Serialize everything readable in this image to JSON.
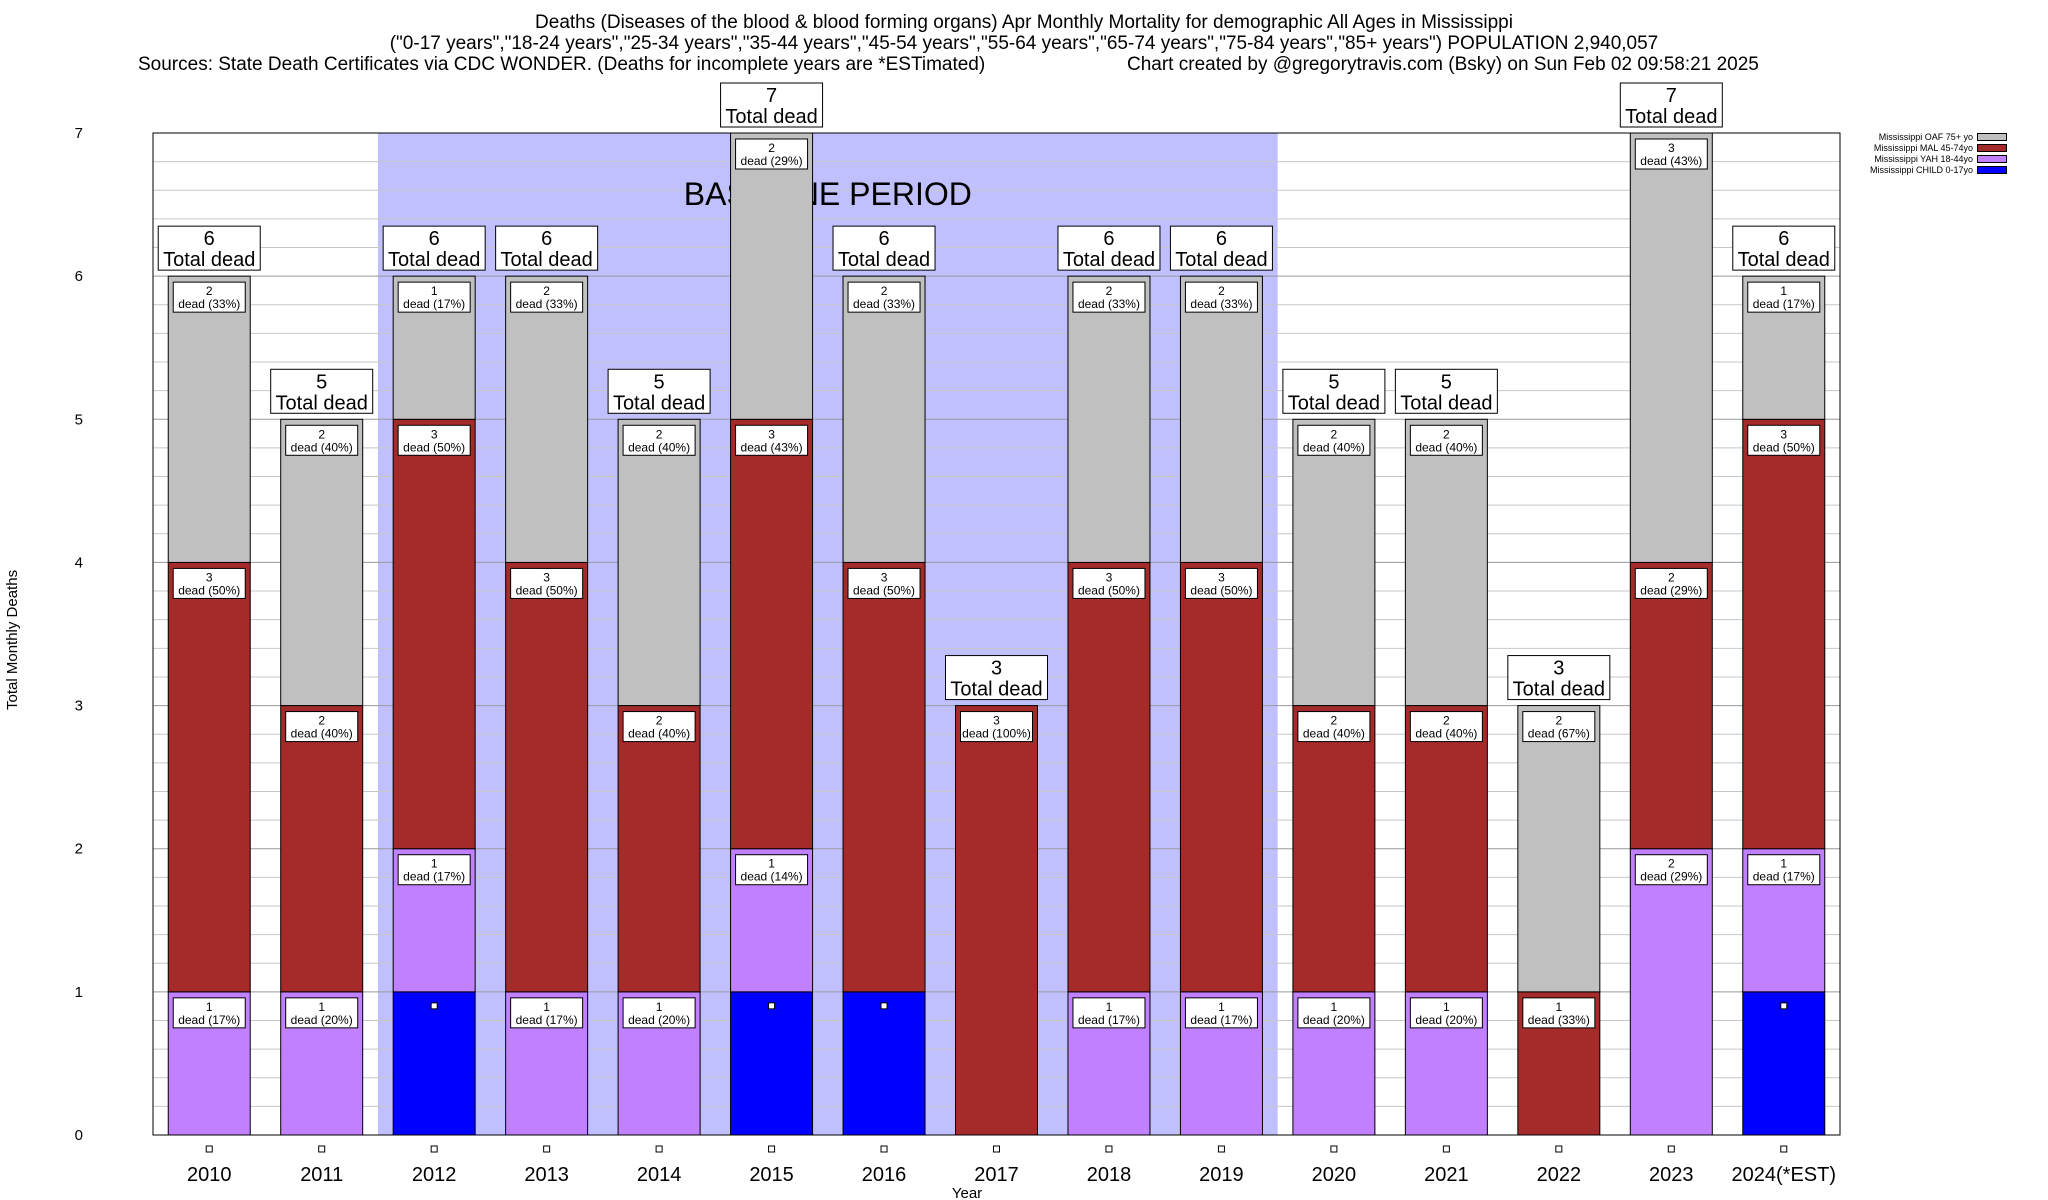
{
  "titles": {
    "line1": "Deaths (Diseases of the blood & blood forming organs) Apr Monthly Mortality for demographic All Ages in Mississippi",
    "line2": "(\"0-17 years\",\"18-24 years\",\"25-34 years\",\"35-44 years\",\"45-54 years\",\"55-64 years\",\"65-74 years\",\"75-84 years\",\"85+ years\") POPULATION 2,940,057",
    "source_left": "Sources: State Death Certificates via CDC WONDER. (Deaths for incomplete years are *ESTimated)",
    "source_right": "Chart created by @gregorytravis.com (Bsky) on Sun Feb 02 09:58:21 2025"
  },
  "chart_data": {
    "type": "bar",
    "stacked": true,
    "categories": [
      "2010",
      "2011",
      "2012",
      "2013",
      "2014",
      "2015",
      "2016",
      "2017",
      "2018",
      "2019",
      "2020",
      "2021",
      "2022",
      "2023",
      "2024(*EST)"
    ],
    "series": [
      {
        "name": "Mississippi CHILD 0-17yo",
        "color": "#0000ff",
        "values": [
          0,
          0,
          1,
          0,
          0,
          1,
          1,
          0,
          0,
          0,
          0,
          0,
          0,
          0,
          1
        ]
      },
      {
        "name": "Mississippi YAH 18-44yo",
        "color": "#c080ff",
        "values": [
          1,
          1,
          1,
          1,
          1,
          1,
          0,
          0,
          1,
          1,
          1,
          1,
          0,
          2,
          1
        ]
      },
      {
        "name": "Mississippi MAL 45-74yo",
        "color": "#a52a2a",
        "values": [
          3,
          2,
          3,
          3,
          2,
          3,
          3,
          3,
          3,
          3,
          2,
          2,
          1,
          2,
          3
        ]
      },
      {
        "name": "Mississippi OAF 75+ yo",
        "color": "#c0c0c0",
        "values": [
          2,
          2,
          1,
          2,
          2,
          2,
          2,
          0,
          2,
          2,
          2,
          2,
          2,
          3,
          1
        ]
      }
    ],
    "segment_labels": [
      [
        null,
        "1\ndead (17%)",
        "3\ndead (50%)",
        "2\ndead (33%)"
      ],
      [
        null,
        "1\ndead (20%)",
        "2\ndead (40%)",
        "2\ndead (40%)"
      ],
      [
        null,
        "1\ndead (17%)",
        "3\ndead (50%)",
        "1\ndead (17%)"
      ],
      [
        null,
        "1\ndead (17%)",
        "3\ndead (50%)",
        "2\ndead (33%)"
      ],
      [
        null,
        "1\ndead (20%)",
        "2\ndead (40%)",
        "2\ndead (40%)"
      ],
      [
        null,
        "1\ndead (14%)",
        "3\ndead (43%)",
        "2\ndead (29%)"
      ],
      [
        null,
        null,
        "3\ndead (50%)",
        "2\ndead (33%)"
      ],
      [
        null,
        null,
        "3\ndead (100%)",
        null
      ],
      [
        null,
        "1\ndead (17%)",
        "3\ndead (50%)",
        "2\ndead (33%)"
      ],
      [
        null,
        "1\ndead (17%)",
        "3\ndead (50%)",
        "2\ndead (33%)"
      ],
      [
        null,
        "1\ndead (20%)",
        "2\ndead (40%)",
        "2\ndead (40%)"
      ],
      [
        null,
        "1\ndead (20%)",
        "2\ndead (40%)",
        "2\ndead (40%)"
      ],
      [
        null,
        null,
        "1\ndead (33%)",
        "2\ndead (67%)"
      ],
      [
        null,
        "2\ndead (29%)",
        "2\ndead (29%)",
        "3\ndead (43%)"
      ],
      [
        null,
        "1\ndead (17%)",
        "3\ndead (50%)",
        "1\ndead (17%)"
      ]
    ],
    "totals": [
      6,
      5,
      6,
      6,
      5,
      7,
      6,
      3,
      6,
      6,
      5,
      5,
      3,
      7,
      6
    ],
    "total_label_suffix": "Total dead",
    "baseline": {
      "label": "BASELINE PERIOD",
      "from": "2012",
      "to": "2019",
      "color": "#c0c0ff"
    },
    "xlabel": "Year",
    "ylabel": "Total Monthly Deaths",
    "ylim": [
      0,
      7
    ],
    "yticks": [
      0,
      1,
      2,
      3,
      4,
      5,
      6,
      7
    ],
    "grid": true,
    "legend_position": "top-right"
  }
}
